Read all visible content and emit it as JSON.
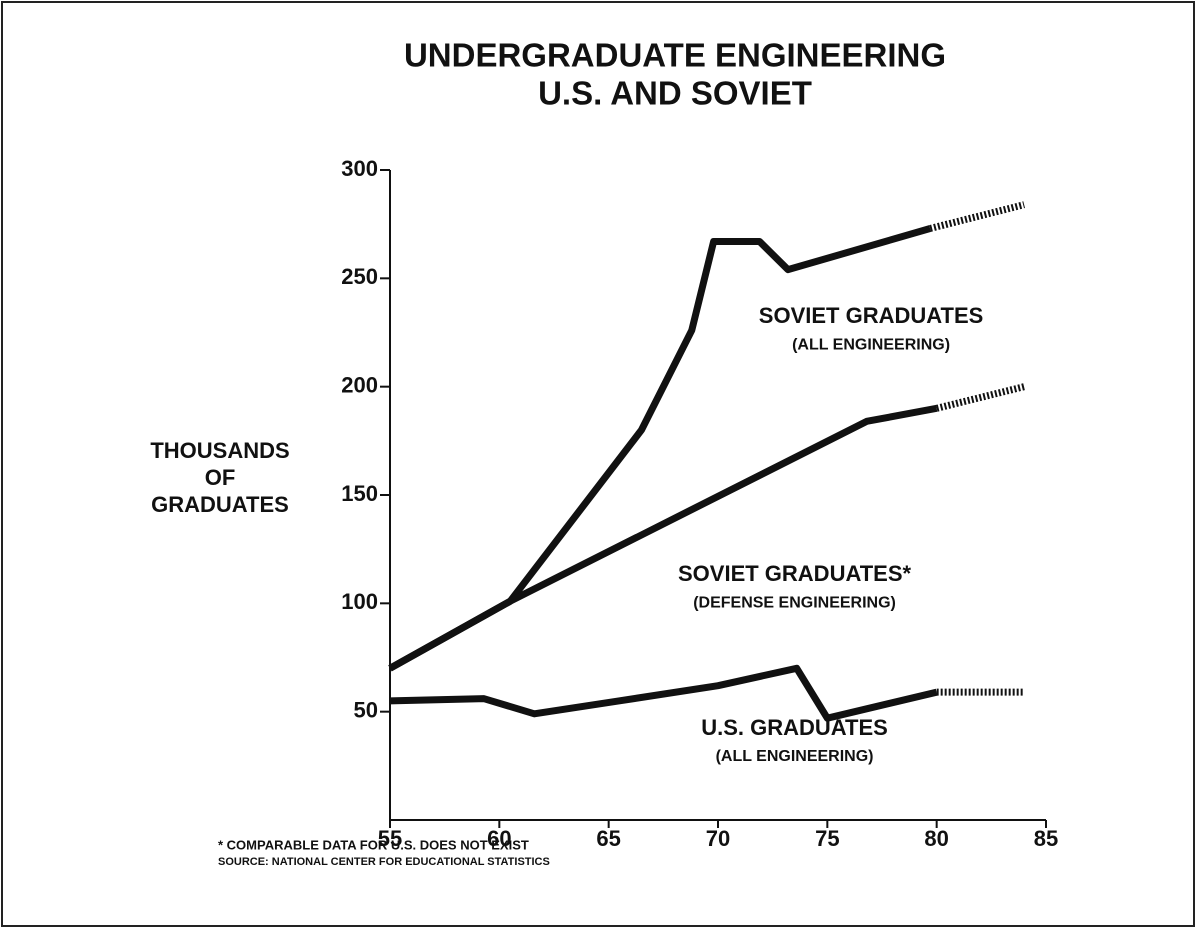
{
  "chart_data": {
    "type": "line",
    "title": [
      "UNDERGRADUATE ENGINEERING",
      "U.S. AND SOVIET"
    ],
    "y_label": [
      "THOUSANDS",
      "OF",
      "GRADUATES"
    ],
    "notes": [
      "* COMPARABLE DATA FOR U.S. DOES NOT EXIST",
      "SOURCE: NATIONAL CENTER FOR EDUCATIONAL STATISTICS"
    ],
    "xlim": [
      55,
      85
    ],
    "xticks": [
      55,
      60,
      65,
      70,
      75,
      80,
      85
    ],
    "ylim": [
      0,
      300
    ],
    "yticks": [
      50,
      100,
      150,
      200,
      250,
      300
    ],
    "dotted_from_x": 80,
    "series": [
      {
        "color": "#111",
        "x": [
          55,
          60.5,
          66.5,
          68.8,
          69.8,
          71.9,
          73.2,
          79.7,
          84
        ],
        "values": [
          70,
          101,
          180,
          226,
          267,
          267,
          254,
          273,
          284
        ]
      },
      {
        "color": "#111",
        "x": [
          55,
          60.5,
          76.8,
          80,
          84
        ],
        "values": [
          70,
          101,
          184,
          190,
          200
        ]
      },
      {
        "color": "#111",
        "x": [
          55,
          59.3,
          61.6,
          65.5,
          70,
          73.6,
          75,
          80,
          84
        ],
        "values": [
          55,
          56,
          49,
          55,
          62,
          70,
          47,
          59,
          59
        ]
      }
    ],
    "annotations": [
      {
        "lines": [
          "SOVIET GRADUATES",
          "(ALL ENGINEERING)"
        ],
        "x": 77,
        "y": 232
      },
      {
        "lines": [
          "SOVIET GRADUATES*",
          "(DEFENSE ENGINEERING)"
        ],
        "x": 73.5,
        "y": 113
      },
      {
        "lines": [
          "U.S. GRADUATES",
          "(ALL ENGINEERING)"
        ],
        "x": 73.5,
        "y": 42
      }
    ]
  }
}
